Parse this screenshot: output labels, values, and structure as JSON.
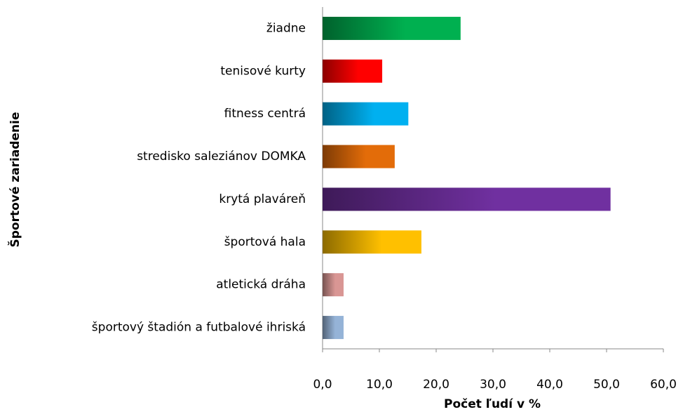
{
  "chart_data": {
    "type": "hbar",
    "xlabel": "Počet ľudí v %",
    "ylabel": "Športové zariadenie",
    "categories": [
      "žiadne",
      "tenisové kurty",
      "fitness centrá",
      "stredisko saleziánov DOMKA",
      "krytá plaváreň",
      "športová hala",
      "atletická dráha",
      "športový štadión a futbalové ihriská"
    ],
    "values": [
      24.3,
      10.5,
      15.1,
      12.7,
      50.7,
      17.4,
      3.7,
      3.7
    ],
    "colors": [
      "#00b050",
      "#ff0000",
      "#00b0f0",
      "#e36c09",
      "#7030a0",
      "#ffc000",
      "#d99694",
      "#95b3d7"
    ],
    "xlim": [
      0,
      60
    ],
    "xticks": [
      {
        "value": 0,
        "label": "0,0"
      },
      {
        "value": 10,
        "label": "10,0"
      },
      {
        "value": 20,
        "label": "20,0"
      },
      {
        "value": 30,
        "label": "30,0"
      },
      {
        "value": 40,
        "label": "40,0"
      },
      {
        "value": 50,
        "label": "50,0"
      },
      {
        "value": 60,
        "label": "60,0"
      }
    ],
    "grid": false
  }
}
